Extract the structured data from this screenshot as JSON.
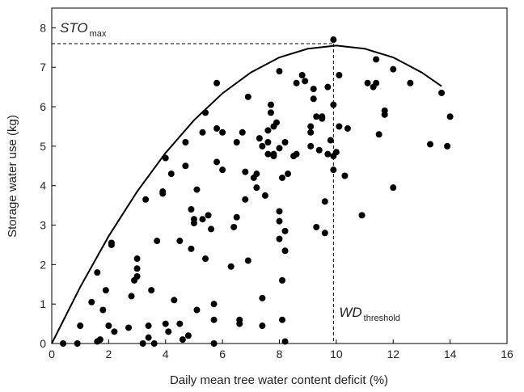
{
  "chart_data": {
    "type": "scatter",
    "x_label": "Daily mean tree water content deficit (%)",
    "y_label": "Storage water use (kg)",
    "xlim": [
      0,
      16
    ],
    "xticks": [
      0,
      2,
      4,
      6,
      8,
      10,
      12,
      14,
      16
    ],
    "ylim": [
      0,
      8.5
    ],
    "yticks": [
      0,
      1,
      2,
      3,
      4,
      5,
      6,
      7,
      8
    ],
    "annotations": [
      {
        "text": "STO",
        "sub": "max"
      },
      {
        "text": "WD",
        "sub": "threshold"
      }
    ],
    "reference": {
      "x": 9.9,
      "y": 7.6
    },
    "series": [
      {
        "type": "scatter",
        "color": "#000000",
        "x": [
          0.4,
          0.9,
          1.0,
          1.4,
          1.6,
          1.6,
          1.7,
          1.8,
          1.9,
          2.0,
          2.1,
          2.1,
          2.2,
          2.7,
          2.8,
          2.9,
          3.0,
          3.0,
          3.0,
          3.2,
          3.3,
          3.4,
          3.4,
          3.5,
          3.6,
          3.7,
          3.9,
          3.9,
          4.0,
          4.0,
          4.1,
          4.2,
          4.3,
          4.5,
          4.5,
          4.6,
          4.7,
          4.7,
          4.8,
          4.9,
          4.9,
          5.0,
          5.0,
          5.1,
          5.1,
          5.3,
          5.3,
          5.4,
          5.4,
          5.5,
          5.6,
          5.7,
          5.7,
          5.7,
          5.8,
          5.8,
          5.8,
          6.0,
          6.0,
          6.3,
          6.4,
          6.5,
          6.5,
          6.6,
          6.6,
          6.7,
          6.8,
          6.8,
          6.9,
          6.9,
          7.1,
          7.2,
          7.2,
          7.3,
          7.4,
          7.4,
          7.4,
          7.5,
          7.6,
          7.6,
          7.6,
          7.7,
          7.7,
          7.8,
          7.8,
          7.8,
          7.9,
          8.0,
          8.0,
          8.0,
          8.0,
          8.0,
          8.1,
          8.1,
          8.1,
          8.2,
          8.2,
          8.2,
          8.2,
          8.3,
          8.5,
          8.6,
          8.6,
          8.8,
          8.9,
          9.1,
          9.1,
          9.1,
          9.2,
          9.2,
          9.3,
          9.3,
          9.4,
          9.5,
          9.5,
          9.6,
          9.6,
          9.7,
          9.7,
          9.8,
          9.9,
          9.9,
          9.9,
          9.9,
          10.0,
          10.1,
          10.1,
          10.3,
          10.4,
          10.9,
          11.1,
          11.3,
          11.4,
          11.4,
          11.5,
          11.7,
          11.7,
          12.0,
          12.0,
          12.6,
          13.3,
          13.7,
          13.9,
          14.0
        ],
        "values": [
          0,
          0,
          0.45,
          1.05,
          1.8,
          0.05,
          0.1,
          0.85,
          1.35,
          0.45,
          2.5,
          2.55,
          0.3,
          0.4,
          1.2,
          1.6,
          1.9,
          2.15,
          1.7,
          0,
          3.65,
          0.45,
          0.15,
          1.35,
          0,
          2.6,
          3.85,
          3.8,
          4.7,
          0.5,
          0.3,
          4.3,
          1.1,
          2.6,
          0.5,
          0.1,
          5.1,
          4.5,
          0.2,
          2.4,
          3.4,
          3.15,
          3.05,
          3.9,
          0.85,
          3.15,
          5.35,
          2.15,
          5.85,
          3.25,
          2.9,
          1.0,
          0.6,
          0,
          5.45,
          4.6,
          6.6,
          4.4,
          5.35,
          1.95,
          2.95,
          5.1,
          3.2,
          0.6,
          0.5,
          5.35,
          3.65,
          4.35,
          2.1,
          6.25,
          4.2,
          3.95,
          4.3,
          5.2,
          5.0,
          1.15,
          0.45,
          3.75,
          5.4,
          4.8,
          5.1,
          6.05,
          5.85,
          4.75,
          5.5,
          4.8,
          5.6,
          4.95,
          3.35,
          3.1,
          6.9,
          2.65,
          1.6,
          0.6,
          4.2,
          5.1,
          2.85,
          2.35,
          0.05,
          4.3,
          4.75,
          6.6,
          4.8,
          6.8,
          6.65,
          5.35,
          5.0,
          5.5,
          6.2,
          6.45,
          2.95,
          5.75,
          4.9,
          5.75,
          5.7,
          3.6,
          2.8,
          4.8,
          6.5,
          5.15,
          7.7,
          4.75,
          6.05,
          4.4,
          4.85,
          6.8,
          5.5,
          4.25,
          5.45,
          3.25,
          6.6,
          6.5,
          7.2,
          6.6,
          5.3,
          5.9,
          5.8,
          6.95,
          3.95,
          6.6,
          5.05,
          6.35,
          5.0,
          5.75
        ]
      },
      {
        "type": "line",
        "color": "#000000",
        "x": [
          0,
          1,
          2,
          3,
          4,
          5,
          6,
          7,
          8,
          9,
          10,
          11,
          12,
          13,
          13.7
        ],
        "values": [
          0,
          1.43,
          2.72,
          3.85,
          4.83,
          5.66,
          6.34,
          6.87,
          7.25,
          7.47,
          7.55,
          7.47,
          7.25,
          6.87,
          6.52
        ]
      }
    ]
  }
}
